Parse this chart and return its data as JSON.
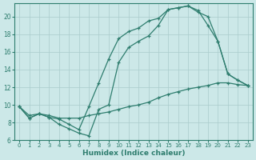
{
  "xlabel": "Humidex (Indice chaleur)",
  "ylabel": "",
  "xlim": [
    -0.5,
    23.5
  ],
  "ylim": [
    6,
    21.5
  ],
  "yticks": [
    6,
    8,
    10,
    12,
    14,
    16,
    18,
    20
  ],
  "xticks": [
    0,
    1,
    2,
    3,
    4,
    5,
    6,
    7,
    8,
    9,
    10,
    11,
    12,
    13,
    14,
    15,
    16,
    17,
    18,
    19,
    20,
    21,
    22,
    23
  ],
  "bg_color": "#cce8e8",
  "grid_color": "#aacccc",
  "line_color": "#2e7d6e",
  "line1_x": [
    0,
    1,
    2,
    3,
    4,
    5,
    6,
    7,
    8,
    9,
    10,
    11,
    12,
    13,
    14,
    15,
    16,
    17,
    18,
    19,
    20,
    21,
    22,
    23
  ],
  "line1_y": [
    9.8,
    8.5,
    9.0,
    8.6,
    8.4,
    7.8,
    7.2,
    9.8,
    12.5,
    15.2,
    17.5,
    18.3,
    18.7,
    19.5,
    19.8,
    20.8,
    21.0,
    21.2,
    20.7,
    19.0,
    17.2,
    13.5,
    12.8,
    12.2
  ],
  "line2_x": [
    0,
    1,
    2,
    3,
    4,
    5,
    6,
    7,
    8,
    9,
    10,
    11,
    12,
    13,
    14,
    15,
    16,
    17,
    18,
    19,
    20,
    21,
    22,
    23
  ],
  "line2_y": [
    9.8,
    8.5,
    9.0,
    8.6,
    7.8,
    7.3,
    6.8,
    6.5,
    9.5,
    10.0,
    14.8,
    16.5,
    17.2,
    17.8,
    19.0,
    20.8,
    21.0,
    21.2,
    20.5,
    20.0,
    17.2,
    13.5,
    12.8,
    12.2
  ],
  "line3_x": [
    0,
    1,
    2,
    3,
    4,
    5,
    6,
    7,
    8,
    9,
    10,
    11,
    12,
    13,
    14,
    15,
    16,
    17,
    18,
    19,
    20,
    21,
    22,
    23
  ],
  "line3_y": [
    9.8,
    8.8,
    9.0,
    8.8,
    8.5,
    8.5,
    8.5,
    8.8,
    9.0,
    9.2,
    9.5,
    9.8,
    10.0,
    10.3,
    10.8,
    11.2,
    11.5,
    11.8,
    12.0,
    12.2,
    12.5,
    12.5,
    12.3,
    12.2
  ]
}
